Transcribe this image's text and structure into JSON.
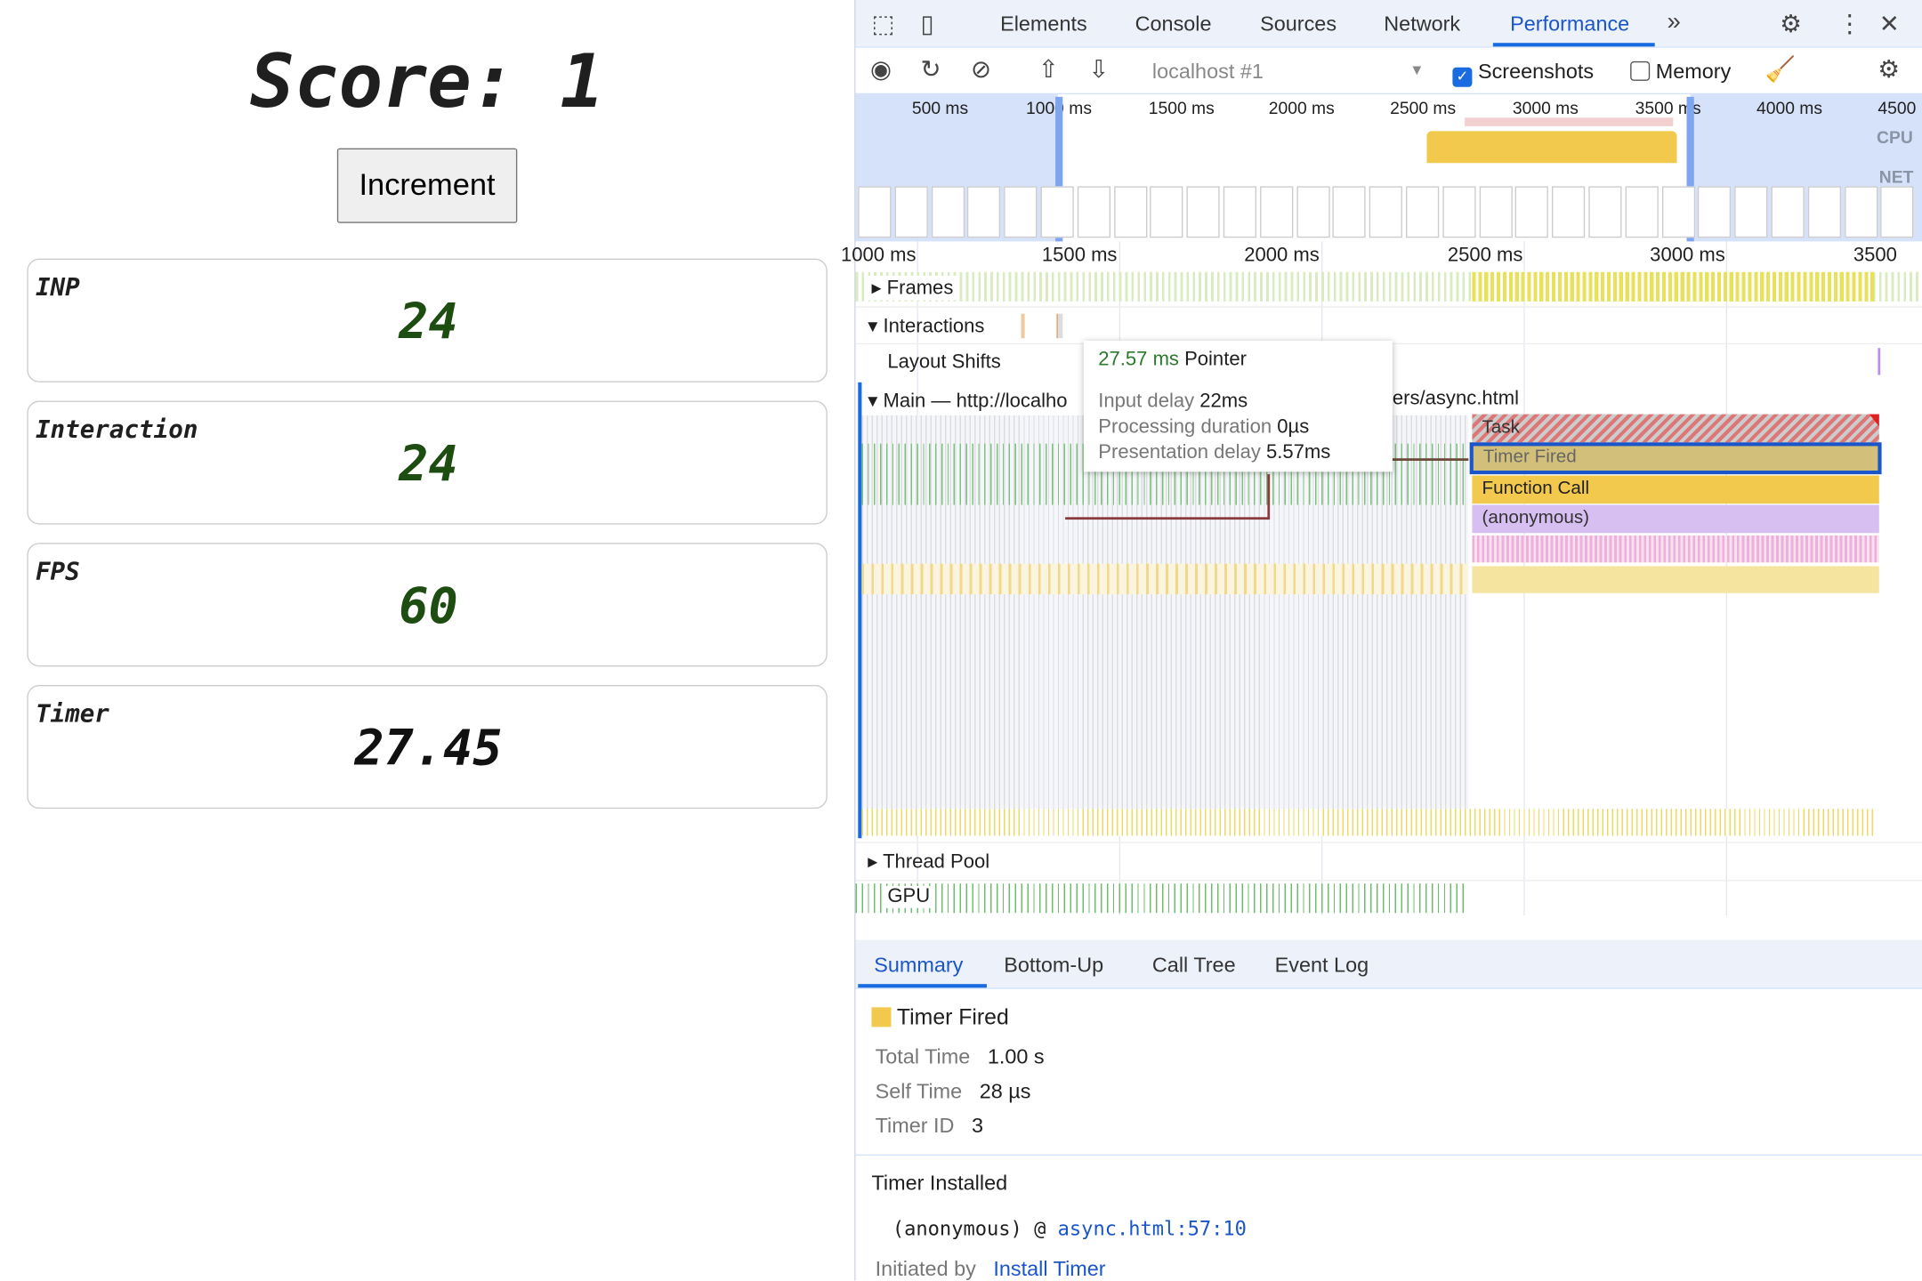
{
  "page": {
    "score_label": "Score:",
    "score_value": "1",
    "increment_label": "Increment",
    "cards": [
      {
        "label": "INP",
        "value": "24"
      },
      {
        "label": "Interaction",
        "value": "24"
      },
      {
        "label": "FPS",
        "value": "60"
      },
      {
        "label": "Timer",
        "value": "27.45"
      }
    ]
  },
  "devtools": {
    "tabs": [
      "Elements",
      "Console",
      "Sources",
      "Network",
      "Performance"
    ],
    "active_tab": "Performance",
    "toolbar": {
      "target": "localhost #1",
      "screenshots_label": "Screenshots",
      "screenshots_checked": true,
      "memory_label": "Memory",
      "memory_checked": false
    },
    "overview": {
      "ticks": [
        "500 ms",
        "1000 ms",
        "1500 ms",
        "2000 ms",
        "2500 ms",
        "3000 ms",
        "3500 ms",
        "4000 ms",
        "4500"
      ],
      "cpu_label": "CPU",
      "net_label": "NET"
    },
    "ruler": [
      "1000 ms",
      "1500 ms",
      "2000 ms",
      "2500 ms",
      "3000 ms",
      "3500"
    ],
    "tracks": {
      "frames": "Frames",
      "interactions": "Interactions",
      "layout_shifts": "Layout Shifts",
      "main": "Main — http://localhost/.../async.html",
      "main_left": "Main — http://localho",
      "main_right": "ers/async.html",
      "thread_pool": "Thread Pool",
      "gpu": "GPU"
    },
    "flame": [
      "Task",
      "Timer Fired",
      "Function Call",
      "(anonymous)"
    ],
    "tooltip": {
      "duration": "27.57 ms",
      "type": "Pointer",
      "input_delay_label": "Input delay",
      "input_delay": "22ms",
      "processing_label": "Processing duration",
      "processing": "0µs",
      "presentation_label": "Presentation delay",
      "presentation": "5.57ms"
    },
    "bottom_tabs": [
      "Summary",
      "Bottom-Up",
      "Call Tree",
      "Event Log"
    ],
    "summary": {
      "title": "Timer Fired",
      "color": "#f2c94c",
      "total_time_label": "Total Time",
      "total_time": "1.00 s",
      "self_time_label": "Self Time",
      "self_time": "28 µs",
      "timer_id_label": "Timer ID",
      "timer_id": "3",
      "installed_title": "Timer Installed",
      "installed_fn": "(anonymous) @ ",
      "installed_link": "async.html:57:10",
      "initiated_label": "Initiated by",
      "initiated_link": "Install Timer"
    }
  }
}
